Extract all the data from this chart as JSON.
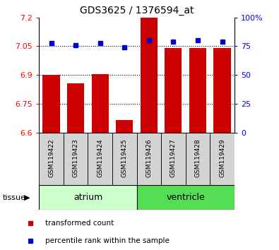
{
  "title": "GDS3625 / 1376594_at",
  "samples": [
    "GSM119422",
    "GSM119423",
    "GSM119424",
    "GSM119425",
    "GSM119426",
    "GSM119427",
    "GSM119428",
    "GSM119429"
  ],
  "red_values": [
    6.9,
    6.855,
    6.905,
    6.665,
    7.2,
    7.04,
    7.04,
    7.04
  ],
  "blue_values_pct": [
    78,
    76,
    78,
    74,
    80,
    79,
    80,
    79
  ],
  "ylim_left": [
    6.6,
    7.2
  ],
  "ylim_right": [
    0,
    100
  ],
  "yticks_left": [
    6.6,
    6.75,
    6.9,
    7.05,
    7.2
  ],
  "yticks_right": [
    0,
    25,
    50,
    75,
    100
  ],
  "ytick_labels_left": [
    "6.6",
    "6.75",
    "6.9",
    "7.05",
    "7.2"
  ],
  "ytick_labels_right": [
    "0",
    "25",
    "50",
    "75",
    "100%"
  ],
  "hlines": [
    6.75,
    6.9,
    7.05
  ],
  "bar_color": "#cc0000",
  "dot_color": "#0000cc",
  "tissue_groups": [
    {
      "label": "atrium",
      "start": 0,
      "end": 4,
      "color": "#ccffcc"
    },
    {
      "label": "ventricle",
      "start": 4,
      "end": 8,
      "color": "#55dd55"
    }
  ],
  "tissue_label": "tissue",
  "legend_items": [
    {
      "label": "transformed count",
      "color": "#cc0000"
    },
    {
      "label": "percentile rank within the sample",
      "color": "#0000cc"
    }
  ],
  "bar_bottom": 6.6,
  "bar_width": 0.7
}
